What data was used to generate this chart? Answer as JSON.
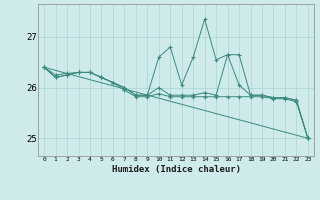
{
  "x": [
    0,
    1,
    2,
    3,
    4,
    5,
    6,
    7,
    8,
    9,
    10,
    11,
    12,
    13,
    14,
    15,
    16,
    17,
    18,
    19,
    20,
    21,
    22,
    23
  ],
  "series1": [
    26.4,
    26.2,
    26.25,
    26.3,
    26.3,
    26.2,
    26.1,
    26.0,
    25.85,
    25.85,
    26.6,
    26.8,
    26.05,
    26.6,
    27.35,
    26.55,
    26.65,
    26.05,
    25.85,
    25.85,
    25.8,
    25.8,
    25.75,
    25.0
  ],
  "series2": [
    26.4,
    26.2,
    26.25,
    26.3,
    26.3,
    26.2,
    26.1,
    26.0,
    25.85,
    25.85,
    26.0,
    25.85,
    25.85,
    25.85,
    25.9,
    25.85,
    26.65,
    26.65,
    25.85,
    25.85,
    25.8,
    25.8,
    25.75,
    25.0
  ],
  "series3": [
    26.4,
    26.25,
    26.28,
    26.3,
    26.3,
    26.2,
    26.1,
    25.95,
    25.82,
    25.82,
    25.88,
    25.82,
    25.82,
    25.82,
    25.82,
    25.82,
    25.82,
    25.82,
    25.82,
    25.82,
    25.78,
    25.78,
    25.72,
    25.0
  ],
  "series4_x": [
    0,
    23
  ],
  "series4_y": [
    26.4,
    25.0
  ],
  "color": "#3a8a7e",
  "bg_color": "#ceeaea",
  "grid_color": "#aad4d4",
  "xlabel": "Humidex (Indice chaleur)",
  "yticks": [
    25,
    26,
    27
  ],
  "xticks": [
    0,
    1,
    2,
    3,
    4,
    5,
    6,
    7,
    8,
    9,
    10,
    11,
    12,
    13,
    14,
    15,
    16,
    17,
    18,
    19,
    20,
    21,
    22,
    23
  ],
  "ylim": [
    24.65,
    27.65
  ],
  "xlim": [
    -0.5,
    23.5
  ]
}
